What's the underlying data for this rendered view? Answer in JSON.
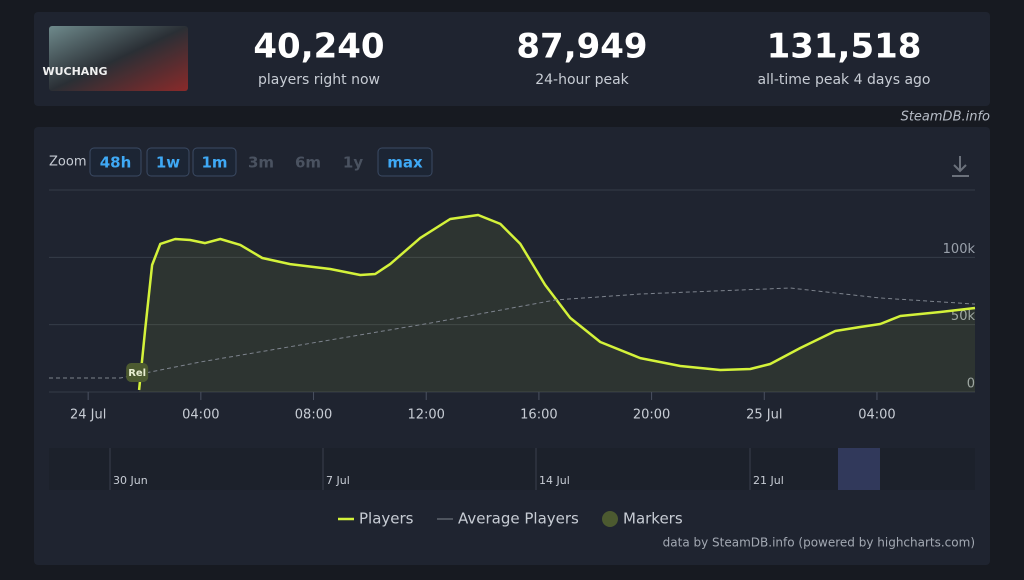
{
  "game": {
    "logo_text": "WUCHANG"
  },
  "stats": [
    {
      "value": "40,240",
      "label": "players right now"
    },
    {
      "value": "87,949",
      "label": "24-hour peak"
    },
    {
      "value": "131,518",
      "label": "all-time peak 4 days ago"
    }
  ],
  "source": "SteamDB.info",
  "zoom": {
    "label": "Zoom",
    "options": [
      "48h",
      "1w",
      "1m",
      "3m",
      "6m",
      "1y",
      "max"
    ],
    "enabled": [
      true,
      true,
      true,
      false,
      false,
      false,
      true
    ]
  },
  "chart_data": {
    "type": "line",
    "xlim": [
      -1.39,
      31.48
    ],
    "xticks": [
      {
        "value": 0,
        "label": "24 Jul"
      },
      {
        "value": 4,
        "label": "04:00"
      },
      {
        "value": 8,
        "label": "08:00"
      },
      {
        "value": 12,
        "label": "12:00"
      },
      {
        "value": 16,
        "label": "16:00"
      },
      {
        "value": 20,
        "label": "20:00"
      },
      {
        "value": 24,
        "label": "25 Jul"
      },
      {
        "value": 28,
        "label": "04:00"
      }
    ],
    "ylim": [
      0,
      150000
    ],
    "yticks": [
      0,
      {
        "value": 50000,
        "label": "50k"
      },
      {
        "value": 100000,
        "label": "100k"
      }
    ],
    "grid": true,
    "series": [
      {
        "name": "Players",
        "color": "#d4f23a",
        "x": [
          1.81,
          2.02,
          2.27,
          2.56,
          3.09,
          3.62,
          4.15,
          4.69,
          5.4,
          6.18,
          7.17,
          8.59,
          9.66,
          10.19,
          10.72,
          11.79,
          12.85,
          13.84,
          14.63,
          15.34,
          16.22,
          17.11,
          18.18,
          19.6,
          21.02,
          22.44,
          23.5,
          24.21,
          25.28,
          26.52,
          27.4,
          28.12,
          28.83,
          30.25,
          31.48
        ],
        "values": [
          1500,
          46000,
          94300,
          110000,
          113600,
          112900,
          110600,
          113600,
          109200,
          99500,
          95000,
          91300,
          86900,
          87600,
          95000,
          114400,
          128500,
          131400,
          124800,
          110000,
          79500,
          55000,
          37100,
          25200,
          19300,
          16300,
          17100,
          20800,
          32700,
          45300,
          48300,
          50500,
          56400,
          59400,
          62400
        ]
      },
      {
        "name": "Average Players",
        "color": "#7d838d",
        "x": [
          -1.39,
          1.14,
          3.98,
          7.53,
          12.14,
          16.58,
          19.6,
          24.92,
          28.12,
          31.48
        ],
        "values": [
          10400,
          10400,
          22300,
          34900,
          51200,
          68300,
          72800,
          77200,
          69800,
          65300
        ]
      }
    ],
    "markers": {
      "name": "Markers",
      "color": "#4c5a30",
      "items": [
        {
          "x": 1.74,
          "label": "Rel"
        }
      ]
    },
    "navigator": {
      "ticks": [
        "30 Jun",
        "7 Jul",
        "14 Jul",
        "21 Jul"
      ]
    },
    "credits": "data by SteamDB.info (powered by highcharts.com)"
  }
}
